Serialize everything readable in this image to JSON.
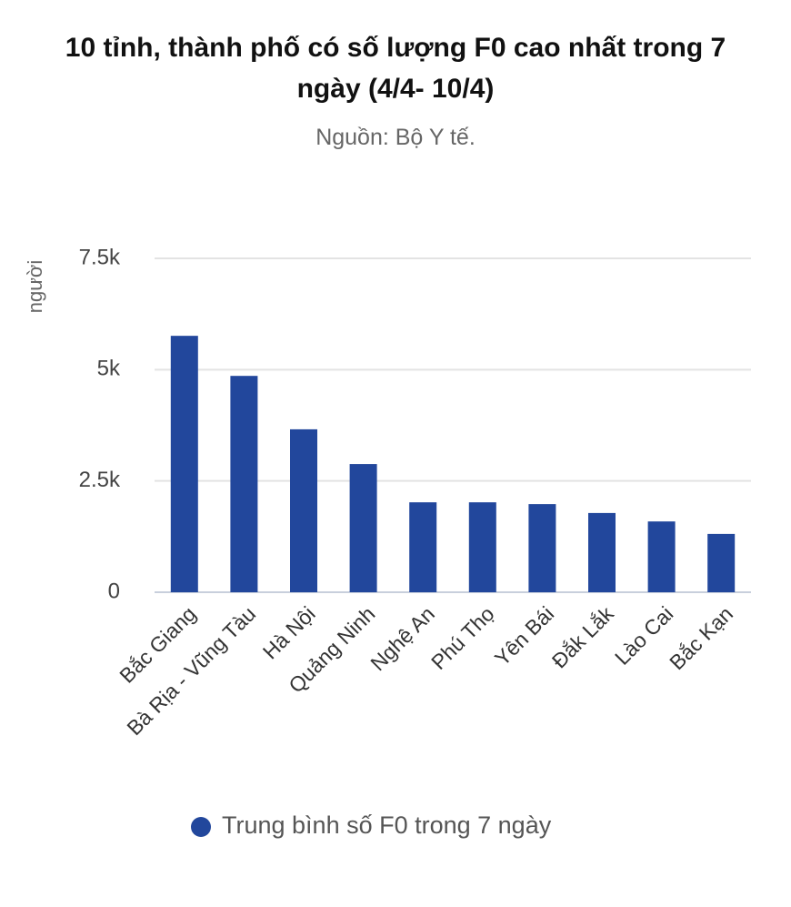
{
  "chart_data": {
    "type": "bar",
    "title": "10 tỉnh, thành phố có số lượng F0 cao nhất trong 7 ngày (4/4- 10/4)",
    "subtitle": "Nguồn: Bộ Y tế.",
    "y_label": "người",
    "categories": [
      "Bắc Giang",
      "Bà Rịa - Vũng Tàu",
      "Hà Nội",
      "Quảng Ninh",
      "Nghệ An",
      "Phú Thọ",
      "Yên Bái",
      "Đắk Lắk",
      "Lào Cai",
      "Bắc Kạn"
    ],
    "series": [
      {
        "name": "Trung bình số F0 trong 7 ngày",
        "color": "#22479c",
        "values": [
          5760,
          4860,
          3660,
          2880,
          2020,
          2020,
          1980,
          1780,
          1590,
          1310
        ]
      }
    ],
    "ylim": [
      0,
      7500
    ],
    "yticks": [
      0,
      {
        "value": 2500,
        "label": "2.5k"
      },
      {
        "value": 5000,
        "label": "5k"
      },
      {
        "value": 7500,
        "label": "7.5k"
      }
    ],
    "grid": true
  }
}
